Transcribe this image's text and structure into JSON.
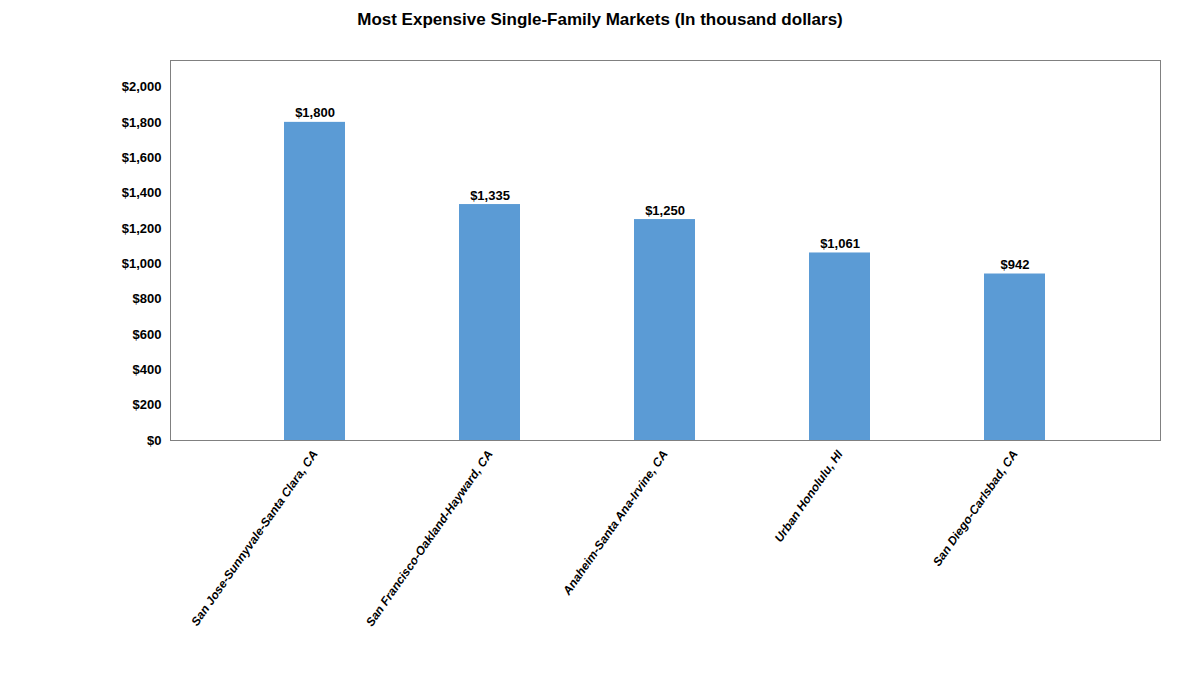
{
  "chart_data": {
    "type": "bar",
    "title": "Most Expensive Single-Family Markets (In thousand dollars)",
    "categories": [
      "San Jose-Sunnyvale-Santa Clara, CA",
      "San Francisco-Oakland-Hayward, CA",
      "Anaheim-Santa Ana-Irvine, CA",
      "Urban Honolulu, HI",
      "San Diego-Carlsbad, CA"
    ],
    "values": [
      1800,
      1335,
      1250,
      1061,
      942
    ],
    "value_labels": [
      "$1,800",
      "$1,335",
      "$1,250",
      "$1,061",
      "$942"
    ],
    "data_labels": true,
    "color": "#5B9BD5",
    "ylim": [
      0,
      2150
    ],
    "yticks": [
      {
        "value": 0,
        "label": "$0"
      },
      {
        "value": 200,
        "label": "$200"
      },
      {
        "value": 400,
        "label": "$400"
      },
      {
        "value": 600,
        "label": "$600"
      },
      {
        "value": 800,
        "label": "$800"
      },
      {
        "value": 1000,
        "label": "$1,000"
      },
      {
        "value": 1200,
        "label": "$1,200"
      },
      {
        "value": 1400,
        "label": "$1,400"
      },
      {
        "value": 1600,
        "label": "$1,600"
      },
      {
        "value": 1800,
        "label": "$1,800"
      },
      {
        "value": 2000,
        "label": "$2,000"
      }
    ],
    "grid": false
  }
}
